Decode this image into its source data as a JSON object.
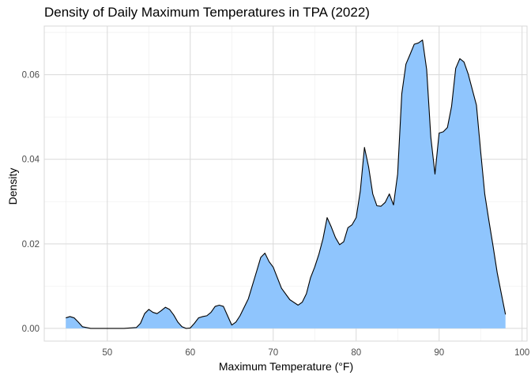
{
  "chart_data": {
    "type": "area",
    "title": "Density of Daily Maximum Temperatures in TPA (2022)",
    "xlabel": "Maximum Temperature (°F)",
    "ylabel": "Density",
    "xlim": [
      42.4,
      100.6
    ],
    "ylim": [
      -0.003,
      0.0715
    ],
    "x_ticks": [
      50,
      60,
      70,
      80,
      90,
      100
    ],
    "y_ticks": [
      0.0,
      0.02,
      0.04,
      0.06
    ],
    "x_tick_labels": [
      "50",
      "60",
      "70",
      "80",
      "90",
      "100"
    ],
    "y_tick_labels": [
      "0.00",
      "0.02",
      "0.04",
      "0.06"
    ],
    "grid": true,
    "fill_color": "#8fc5fd",
    "line_color": "#000000",
    "grid_color": "#d9d9d9",
    "x": [
      45.0,
      45.5,
      46.0,
      46.5,
      47.0,
      48.0,
      50.0,
      52.0,
      53.5,
      54.0,
      54.5,
      55.0,
      55.5,
      56.0,
      56.5,
      57.0,
      57.5,
      58.0,
      58.5,
      59.0,
      59.5,
      60.0,
      60.5,
      61.0,
      61.5,
      62.0,
      62.5,
      63.0,
      63.5,
      64.0,
      64.5,
      65.0,
      65.5,
      66.0,
      67.0,
      68.0,
      68.5,
      69.0,
      69.5,
      70.0,
      70.5,
      71.0,
      72.0,
      73.0,
      73.5,
      74.0,
      74.5,
      75.0,
      75.5,
      76.0,
      76.5,
      77.0,
      77.5,
      78.0,
      78.5,
      79.0,
      79.5,
      80.0,
      80.5,
      81.0,
      81.5,
      82.0,
      82.5,
      83.0,
      83.5,
      84.0,
      84.5,
      85.0,
      85.5,
      86.0,
      86.5,
      87.0,
      87.5,
      88.0,
      88.5,
      89.0,
      89.5,
      90.0,
      90.5,
      91.0,
      91.5,
      92.0,
      92.5,
      93.0,
      93.5,
      94.0,
      94.5,
      95.0,
      95.5,
      96.0,
      96.5,
      97.0,
      97.5,
      98.0
    ],
    "y": [
      0.0025,
      0.0028,
      0.0025,
      0.0015,
      0.0004,
      0.0,
      0.0,
      0.0,
      0.0002,
      0.0012,
      0.0035,
      0.0045,
      0.0038,
      0.0035,
      0.0042,
      0.005,
      0.0045,
      0.0032,
      0.0015,
      0.0004,
      0.0,
      0.0001,
      0.0012,
      0.0025,
      0.0028,
      0.003,
      0.0038,
      0.0052,
      0.0055,
      0.0052,
      0.003,
      0.0008,
      0.0015,
      0.003,
      0.007,
      0.0135,
      0.0168,
      0.0178,
      0.0158,
      0.0145,
      0.012,
      0.0095,
      0.0068,
      0.0055,
      0.0062,
      0.0082,
      0.012,
      0.0145,
      0.0175,
      0.0212,
      0.0262,
      0.024,
      0.0215,
      0.0198,
      0.0205,
      0.0238,
      0.0245,
      0.0262,
      0.0325,
      0.0428,
      0.0382,
      0.0318,
      0.029,
      0.0289,
      0.0298,
      0.0318,
      0.0292,
      0.0365,
      0.0555,
      0.0625,
      0.0648,
      0.0672,
      0.0675,
      0.0682,
      0.0612,
      0.0452,
      0.0365,
      0.0462,
      0.0465,
      0.0475,
      0.0525,
      0.0615,
      0.0638,
      0.063,
      0.0602,
      0.0565,
      0.0528,
      0.042,
      0.0318,
      0.0255,
      0.0195,
      0.0132,
      0.0082,
      0.0033
    ]
  }
}
